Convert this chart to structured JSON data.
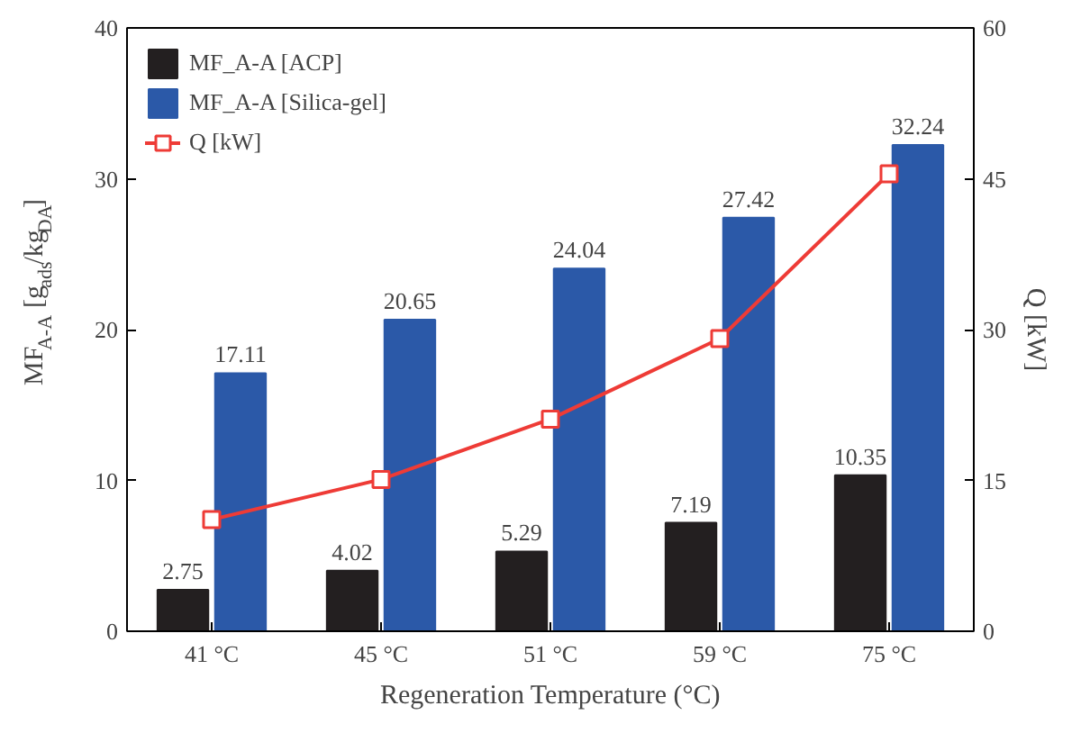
{
  "chart_data": {
    "type": "bar",
    "xlabel": "Regeneration Temperature (°C)",
    "ylabel": "MF$_{A-A}$ [g$_{ads}$/kg$_{DA}$]",
    "y2label": "Q [kW]",
    "categories": [
      "41 °C",
      "45 °C",
      "51 °C",
      "59 °C",
      "75 °C"
    ],
    "series": [
      {
        "name": "MF_A-A [ACP]",
        "color": "#231f20",
        "values": [
          2.75,
          4.02,
          5.29,
          7.19,
          10.35
        ],
        "value_labels": [
          "2.75",
          "4.02",
          "5.29",
          "7.19",
          "10.35"
        ]
      },
      {
        "name": "MF_A-A [Silica-gel]",
        "color": "#2b59a8",
        "values": [
          17.11,
          20.65,
          24.04,
          27.42,
          32.24
        ],
        "value_labels": [
          "17.11",
          "20.65",
          "24.04",
          "27.42",
          "32.24"
        ]
      },
      {
        "name": "Q [kW]",
        "type": "line",
        "axis": "y2",
        "color": "#ee3b36",
        "marker": "square",
        "values": [
          11.1,
          15.1,
          21.1,
          29.1,
          45.5
        ]
      }
    ],
    "ylim": [
      0,
      40
    ],
    "yticks": [
      0,
      10,
      20,
      30,
      40
    ],
    "y2lim": [
      0,
      60
    ],
    "y2ticks": [
      0,
      15,
      30,
      45,
      60
    ],
    "grid": false,
    "legend": "top left"
  }
}
